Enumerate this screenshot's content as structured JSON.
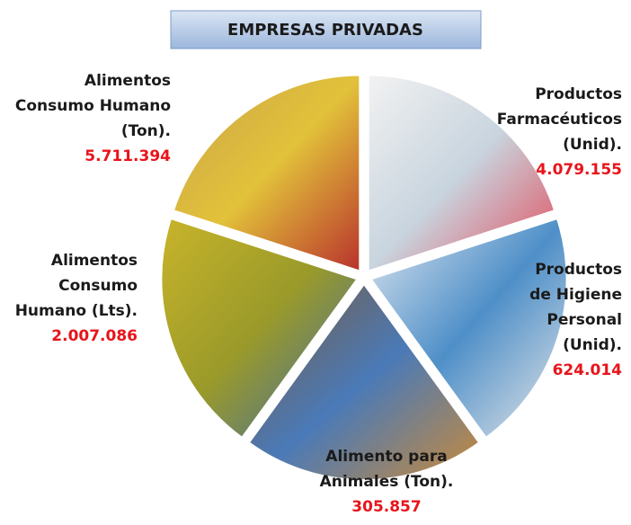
{
  "header": {
    "title": "EMPRESAS PRIVADAS"
  },
  "items": [
    {
      "label_lines": [
        "Alimentos",
        "Consumo Humano",
        "(Ton)."
      ],
      "value": "5.711.394"
    },
    {
      "label_lines": [
        "Productos",
        "Farmacéuticos",
        "(Unid)."
      ],
      "value": "4.079.155"
    },
    {
      "label_lines": [
        "Productos",
        "de Higiene",
        "Personal",
        "(Unid)."
      ],
      "value": "624.014"
    },
    {
      "label_lines": [
        "Alimento para",
        "Animales (Ton)."
      ],
      "value": "305.857"
    },
    {
      "label_lines": [
        "Alimentos",
        "Consumo",
        "Humano (Lts)."
      ],
      "value": "2.007.086"
    }
  ]
}
